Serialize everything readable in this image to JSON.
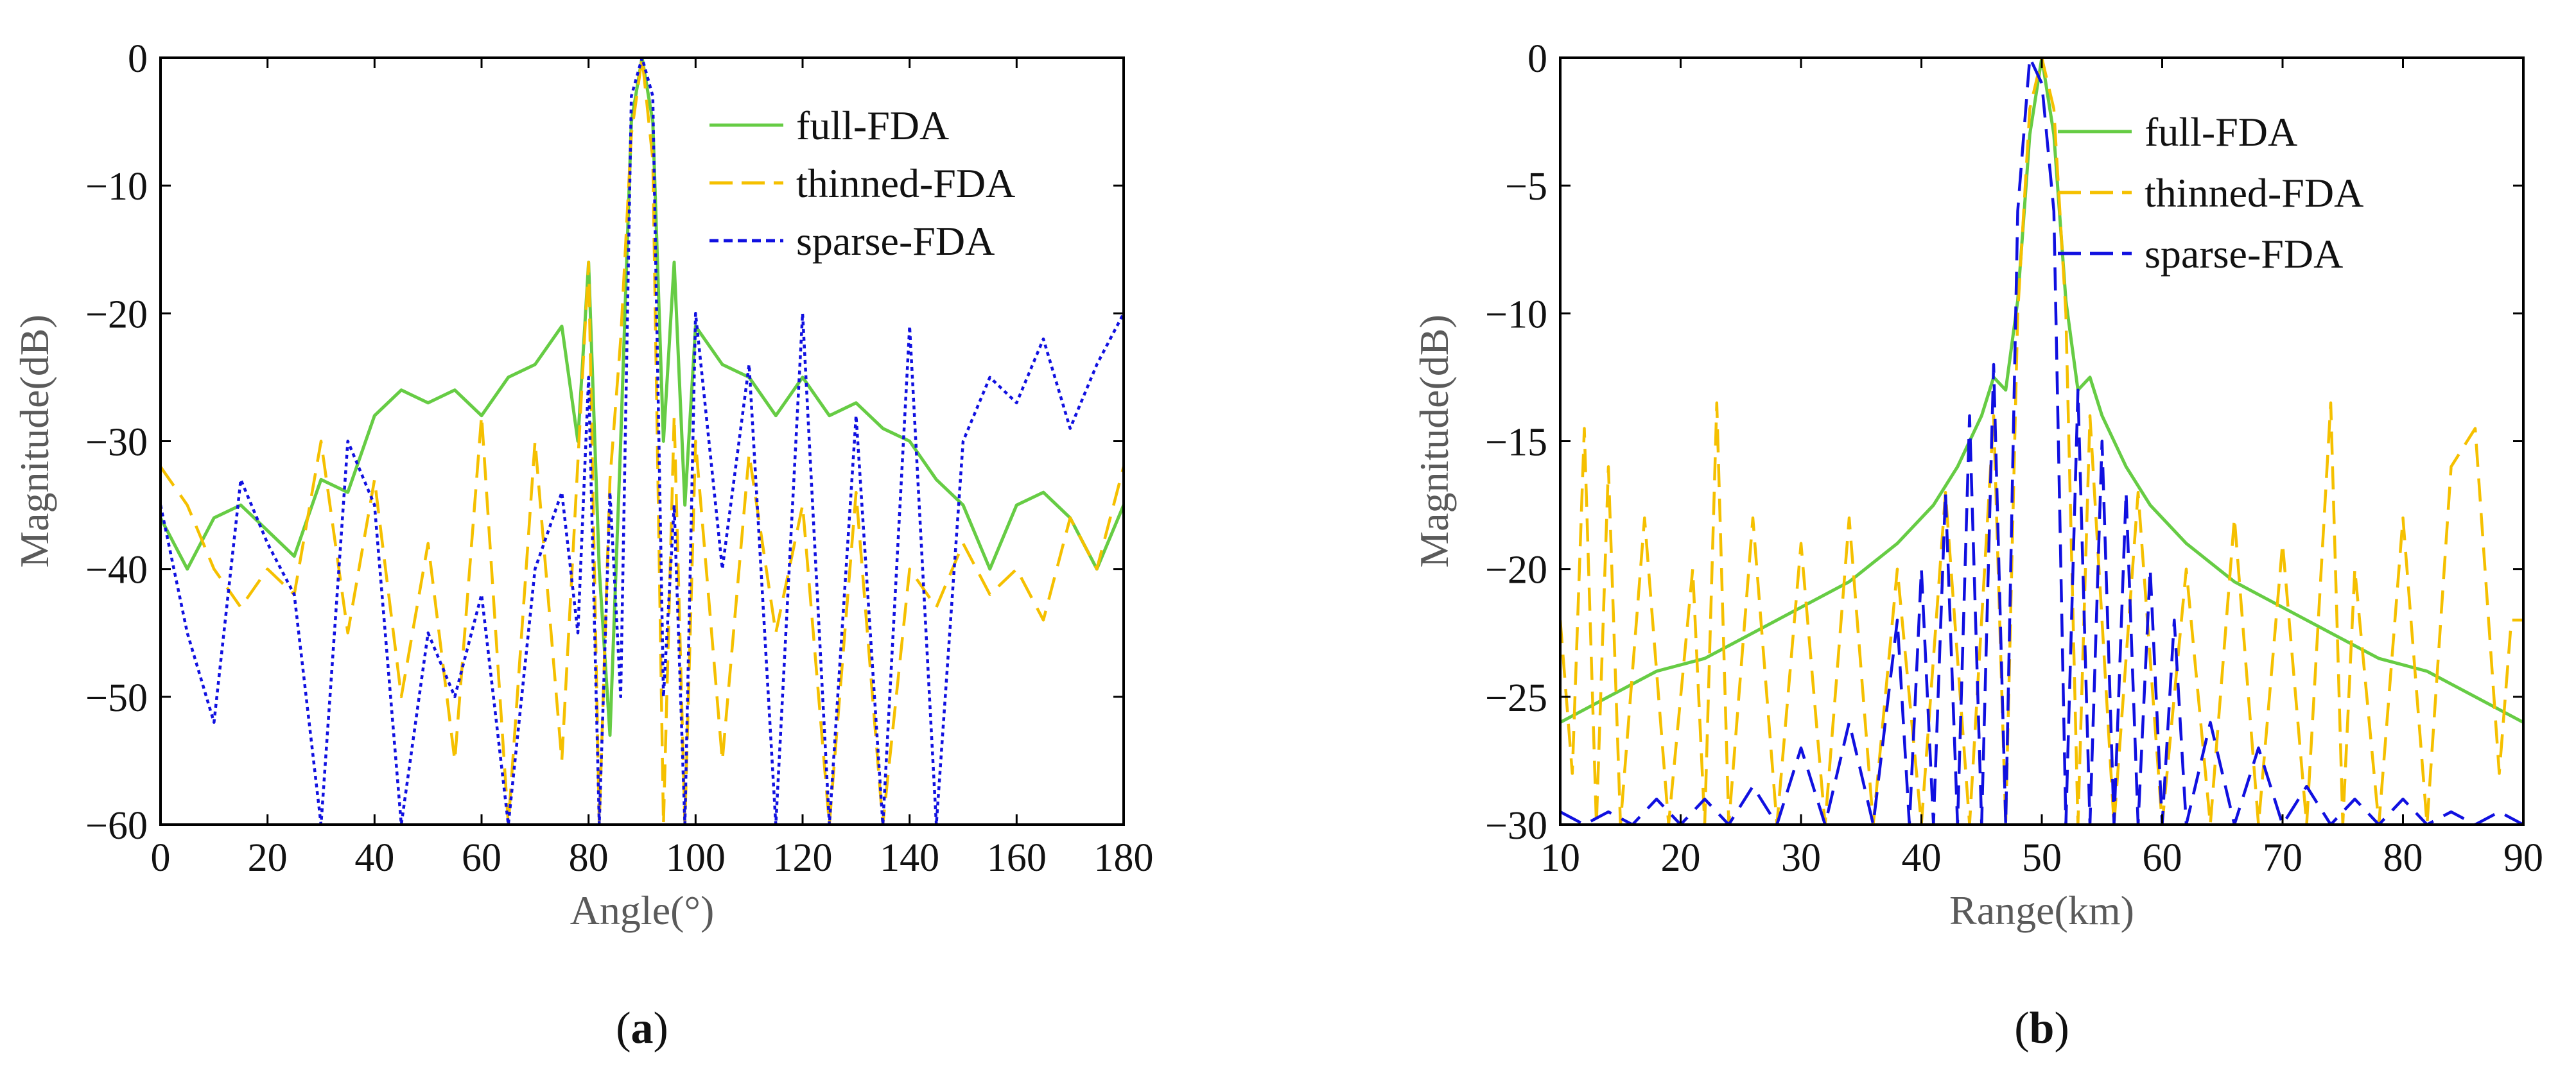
{
  "chart_data": [
    {
      "type": "line",
      "panel": "a",
      "caption_open": "(",
      "caption_letter": "a",
      "caption_close": ")",
      "xlabel": "Angle(°)",
      "ylabel": "Magnitude(dB)",
      "xlim": [
        0,
        180
      ],
      "ylim": [
        -60,
        0
      ],
      "xticks": [
        0,
        20,
        40,
        60,
        80,
        100,
        120,
        140,
        160,
        180
      ],
      "yticks": [
        0,
        -10,
        -20,
        -30,
        -40,
        -50,
        -60
      ],
      "legend_position": "top-right",
      "peak_x": 90,
      "series": [
        {
          "name": "full-FDA",
          "color": "#66cc44",
          "style": "solid",
          "x": [
            0,
            5,
            10,
            15,
            20,
            25,
            30,
            35,
            40,
            45,
            50,
            55,
            60,
            65,
            70,
            75,
            78,
            80,
            82,
            84,
            86,
            88,
            90,
            92,
            94,
            96,
            98,
            100,
            105,
            110,
            115,
            120,
            125,
            130,
            135,
            140,
            145,
            150,
            155,
            160,
            165,
            170,
            175,
            180
          ],
          "values": [
            -36,
            -40,
            -36,
            -35,
            -37,
            -39,
            -33,
            -34,
            -28,
            -26,
            -27,
            -26,
            -28,
            -25,
            -24,
            -21,
            -30,
            -16,
            -40,
            -53,
            -30,
            -5,
            0,
            -5,
            -30,
            -16,
            -35,
            -21,
            -24,
            -25,
            -28,
            -25,
            -28,
            -27,
            -29,
            -30,
            -33,
            -35,
            -40,
            -35,
            -34,
            -36,
            -40,
            -35
          ]
        },
        {
          "name": "thinned-FDA",
          "color": "#f5c000",
          "style": "dashed",
          "x": [
            0,
            5,
            10,
            15,
            20,
            25,
            30,
            35,
            40,
            45,
            50,
            55,
            60,
            65,
            70,
            75,
            80,
            82,
            84,
            86,
            88,
            90,
            92,
            94,
            96,
            98,
            100,
            105,
            110,
            115,
            120,
            125,
            130,
            135,
            140,
            145,
            150,
            155,
            160,
            165,
            170,
            175,
            180
          ],
          "values": [
            -32,
            -35,
            -40,
            -43,
            -40,
            -42,
            -30,
            -45,
            -33,
            -50,
            -38,
            -55,
            -28,
            -60,
            -30,
            -55,
            -16,
            -60,
            -33,
            -22,
            -6,
            0,
            -8,
            -60,
            -28,
            -60,
            -30,
            -55,
            -31,
            -45,
            -35,
            -60,
            -34,
            -60,
            -40,
            -43,
            -38,
            -42,
            -40,
            -44,
            -36,
            -40,
            -32
          ]
        },
        {
          "name": "sparse-FDA",
          "color": "#1010e0",
          "style": "dotted",
          "x": [
            0,
            5,
            10,
            15,
            20,
            25,
            30,
            35,
            40,
            45,
            50,
            55,
            60,
            65,
            70,
            75,
            78,
            80,
            82,
            84,
            86,
            88,
            90,
            92,
            94,
            96,
            98,
            100,
            105,
            110,
            115,
            120,
            125,
            130,
            135,
            140,
            145,
            150,
            155,
            160,
            165,
            170,
            175,
            180
          ],
          "values": [
            -35,
            -45,
            -52,
            -33,
            -38,
            -42,
            -60,
            -30,
            -35,
            -60,
            -45,
            -50,
            -42,
            -60,
            -40,
            -34,
            -45,
            -25,
            -60,
            -34,
            -50,
            -3,
            0,
            -3,
            -50,
            -35,
            -60,
            -20,
            -40,
            -24,
            -60,
            -20,
            -60,
            -28,
            -60,
            -21,
            -60,
            -30,
            -25,
            -27,
            -22,
            -29,
            -24,
            -20
          ]
        }
      ]
    },
    {
      "type": "line",
      "panel": "b",
      "caption_open": "(",
      "caption_letter": "b",
      "caption_close": ")",
      "xlabel": "Range(km)",
      "ylabel": "Magnitude(dB)",
      "xlim": [
        10,
        90
      ],
      "ylim": [
        -30,
        0
      ],
      "xticks": [
        10,
        20,
        30,
        40,
        50,
        60,
        70,
        80,
        90
      ],
      "yticks": [
        0,
        -5,
        -10,
        -15,
        -20,
        -25,
        -30
      ],
      "legend_position": "top-right",
      "peak_x": 50,
      "series": [
        {
          "name": "full-FDA",
          "color": "#66cc44",
          "style": "solid",
          "x": [
            10,
            14,
            18,
            22,
            26,
            30,
            34,
            38,
            41,
            43,
            45,
            46,
            47,
            48,
            49,
            50,
            51,
            52,
            53,
            54,
            55,
            57,
            59,
            62,
            66,
            70,
            74,
            78,
            82,
            86,
            90
          ],
          "values": [
            -26,
            -25,
            -24,
            -23.5,
            -22.5,
            -21.5,
            -20.5,
            -19,
            -17.5,
            -16,
            -14,
            -12.5,
            -13,
            -9.5,
            -3,
            0,
            -3,
            -9.5,
            -13,
            -12.5,
            -14,
            -16,
            -17.5,
            -19,
            -20.5,
            -21.5,
            -22.5,
            -23.5,
            -24,
            -25,
            -26
          ]
        },
        {
          "name": "thinned-FDA",
          "color": "#f5c000",
          "style": "dashed",
          "x": [
            10,
            11,
            12,
            13,
            14,
            15,
            17,
            19,
            21,
            22,
            23,
            24,
            26,
            28,
            30,
            32,
            34,
            36,
            38,
            40,
            42,
            44,
            46,
            47,
            48,
            49,
            50,
            51,
            52,
            53,
            54,
            56,
            58,
            60,
            62,
            64,
            66,
            68,
            70,
            72,
            74,
            75,
            76,
            78,
            80,
            82,
            84,
            86,
            88,
            89,
            90
          ],
          "values": [
            -22,
            -28,
            -14.5,
            -30,
            -16,
            -30,
            -18,
            -30,
            -20,
            -30,
            -13.5,
            -30,
            -18,
            -30,
            -19,
            -30,
            -18,
            -30,
            -20,
            -30,
            -17,
            -30,
            -14,
            -30,
            -10,
            -2,
            0,
            -2,
            -10,
            -30,
            -14,
            -30,
            -17,
            -30,
            -20,
            -30,
            -18,
            -30,
            -19,
            -30,
            -13.5,
            -30,
            -20,
            -30,
            -18,
            -30,
            -16,
            -14.5,
            -28,
            -22,
            -22
          ]
        },
        {
          "name": "sparse-FDA",
          "color": "#1010e0",
          "style": "dashed",
          "x": [
            10,
            12,
            14,
            16,
            18,
            20,
            22,
            24,
            26,
            28,
            30,
            32,
            34,
            36,
            38,
            39,
            40,
            41,
            42,
            43,
            44,
            45,
            46,
            47,
            48,
            49,
            50,
            51,
            52,
            53,
            54,
            55,
            56,
            57,
            58,
            59,
            60,
            61,
            62,
            64,
            66,
            68,
            70,
            72,
            74,
            76,
            78,
            80,
            82,
            84,
            86,
            88,
            90
          ],
          "values": [
            -29.5,
            -30,
            -29.5,
            -30,
            -29,
            -30,
            -29,
            -30,
            -28.5,
            -30,
            -27,
            -30,
            -26,
            -30,
            -22,
            -30,
            -20,
            -30,
            -17,
            -30,
            -14,
            -30,
            -12,
            -30,
            -6,
            0,
            -1,
            -6,
            -30,
            -13,
            -30,
            -15,
            -30,
            -17,
            -30,
            -20,
            -30,
            -22,
            -30,
            -26,
            -30,
            -27,
            -30,
            -28.5,
            -30,
            -29,
            -30,
            -29,
            -30,
            -29.5,
            -30,
            -29.5,
            -30
          ]
        }
      ]
    }
  ]
}
